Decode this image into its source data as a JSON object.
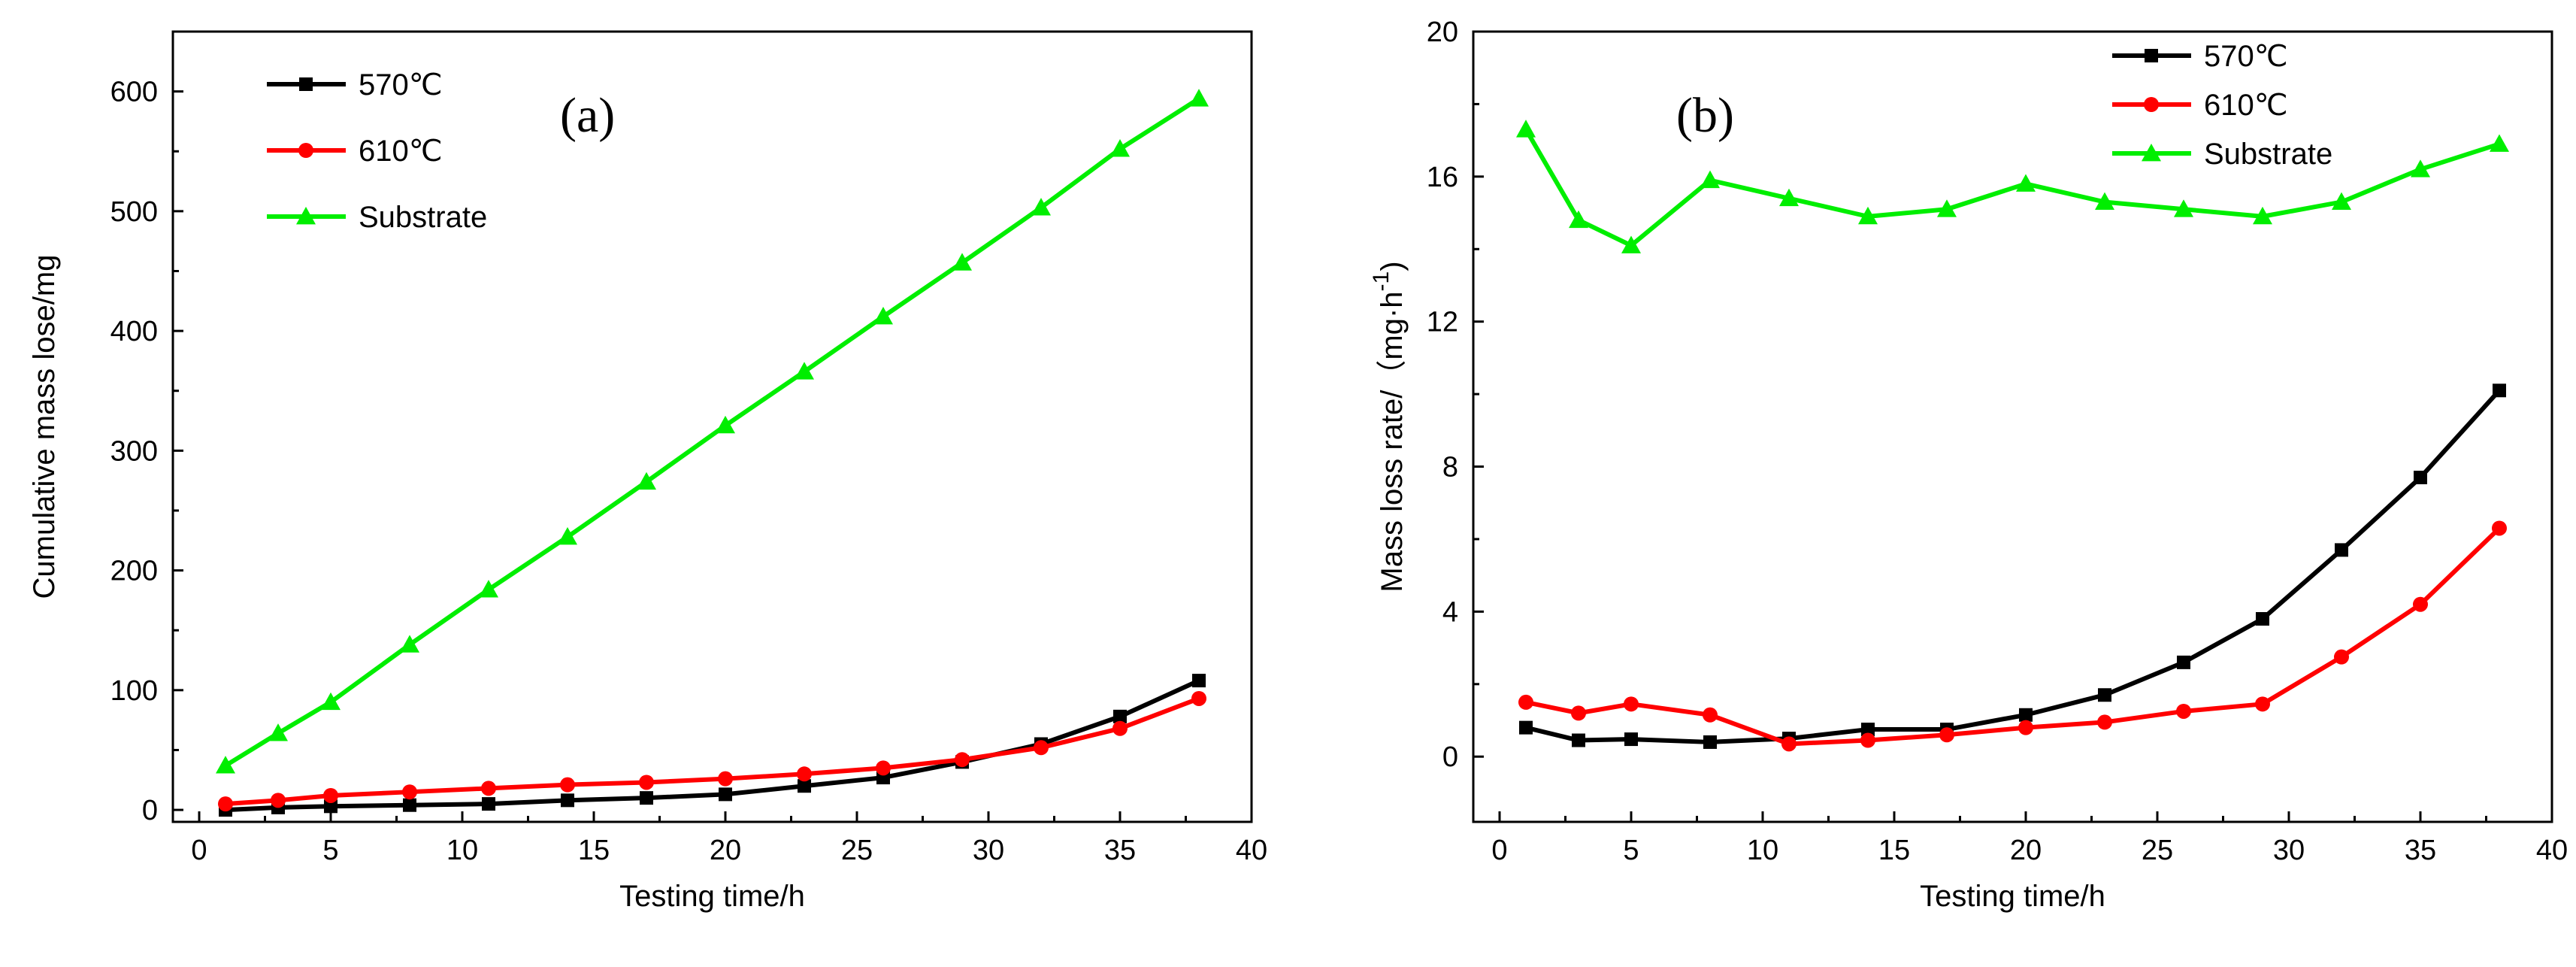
{
  "chart_data": [
    {
      "type": "line",
      "panel_label": "(a)",
      "xlabel": "Testing time/h",
      "ylabel": "Cumulative mass lose/mg",
      "xlim": [
        -1,
        40
      ],
      "ylim": [
        -10,
        650
      ],
      "xticks": [
        0,
        5,
        10,
        15,
        20,
        25,
        30,
        35,
        40
      ],
      "yticks": [
        0,
        100,
        200,
        300,
        400,
        500,
        600
      ],
      "x": [
        1,
        3,
        5,
        8,
        11,
        14,
        17,
        20,
        23,
        26,
        29,
        32,
        35,
        38
      ],
      "legend_position": "top-left",
      "series": [
        {
          "name": "570℃",
          "color": "#000000",
          "marker": "square",
          "values": [
            0,
            2,
            3,
            4,
            5,
            8,
            10,
            13,
            20,
            27,
            40,
            55,
            78,
            108
          ]
        },
        {
          "name": "610℃",
          "color": "#ff0000",
          "marker": "circle",
          "values": [
            5,
            8,
            12,
            15,
            18,
            21,
            23,
            26,
            30,
            35,
            42,
            52,
            68,
            93
          ]
        },
        {
          "name": "Substrate",
          "color": "#00ee00",
          "marker": "triangle",
          "values": [
            37,
            64,
            90,
            138,
            184,
            228,
            274,
            321,
            366,
            412,
            457,
            503,
            552,
            594
          ]
        }
      ]
    },
    {
      "type": "line",
      "panel_label": "(b)",
      "xlabel": "Testing time/h",
      "ylabel_main": "Mass loss rate/（mg·h",
      "ylabel_sup": "-1",
      "ylabel_close": ")",
      "xlim": [
        -1,
        40
      ],
      "ylim": [
        -1.8,
        20
      ],
      "xticks": [
        0,
        5,
        10,
        15,
        20,
        25,
        30,
        35,
        40
      ],
      "yticks": [
        0,
        4,
        8,
        12,
        16,
        20
      ],
      "x": [
        1,
        3,
        5,
        8,
        11,
        14,
        17,
        20,
        23,
        26,
        29,
        32,
        35,
        38
      ],
      "legend_position": "top-right",
      "series": [
        {
          "name": "570℃",
          "color": "#000000",
          "marker": "square",
          "values": [
            0.8,
            0.45,
            0.48,
            0.4,
            0.5,
            0.75,
            0.75,
            1.15,
            1.7,
            2.6,
            3.8,
            5.7,
            7.7,
            10.1
          ]
        },
        {
          "name": "610℃",
          "color": "#ff0000",
          "marker": "circle",
          "values": [
            1.5,
            1.2,
            1.45,
            1.15,
            0.35,
            0.45,
            0.6,
            0.8,
            0.95,
            1.25,
            1.45,
            2.75,
            4.2,
            6.3
          ]
        },
        {
          "name": "Substrate",
          "color": "#00ee00",
          "marker": "triangle",
          "values": [
            17.3,
            14.8,
            14.1,
            15.9,
            15.4,
            14.9,
            15.1,
            15.8,
            15.3,
            15.1,
            14.9,
            15.3,
            16.2,
            16.9
          ]
        }
      ]
    }
  ]
}
